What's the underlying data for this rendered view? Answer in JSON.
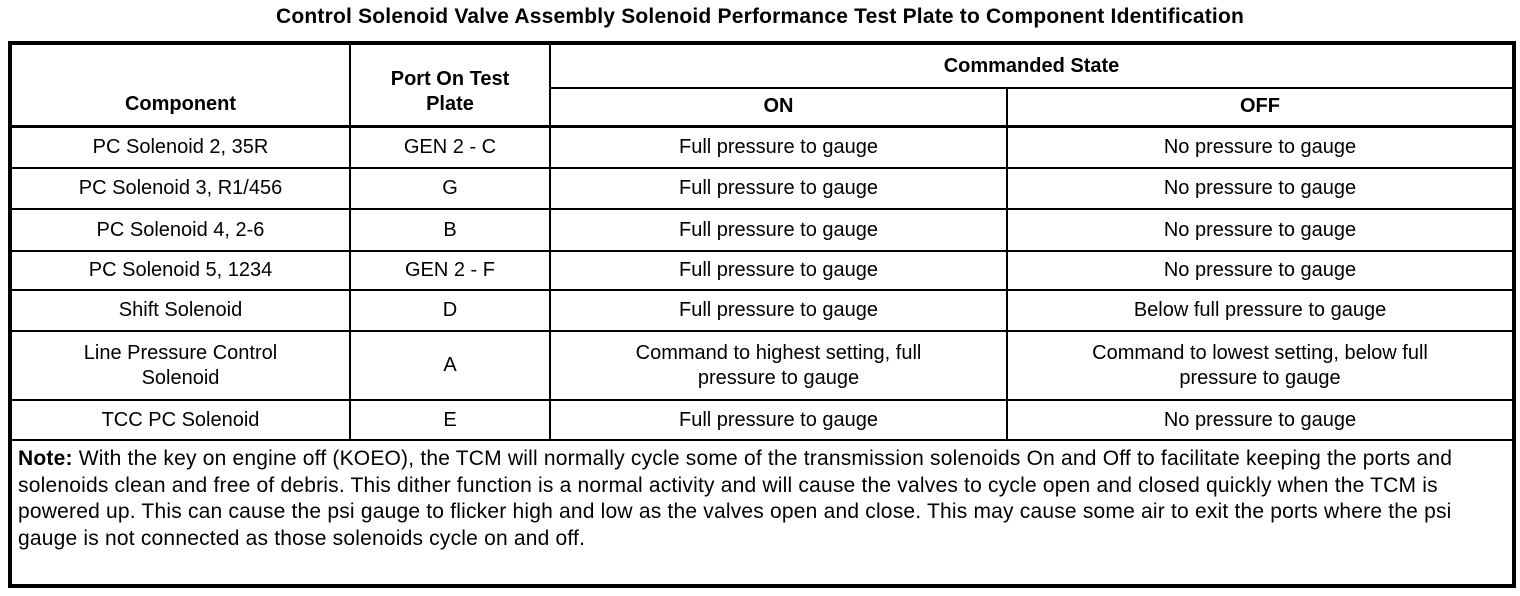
{
  "title": "Control Solenoid Valve Assembly Solenoid Performance Test Plate to Component Identification",
  "table": {
    "headers": {
      "component": "Component",
      "port": "Port On Test Plate",
      "commanded_state": "Commanded State",
      "on": "ON",
      "off": "OFF"
    },
    "rows": [
      {
        "component": "PC Solenoid 2, 35R",
        "port": "GEN 2 - C",
        "on": "Full pressure to gauge",
        "off": "No pressure to gauge"
      },
      {
        "component": "PC Solenoid 3, R1/456",
        "port": "G",
        "on": "Full pressure to gauge",
        "off": "No pressure to gauge"
      },
      {
        "component": "PC Solenoid 4, 2-6",
        "port": "B",
        "on": "Full pressure to gauge",
        "off": "No pressure to gauge"
      },
      {
        "component": "PC Solenoid 5, 1234",
        "port": "GEN 2 - F",
        "on": "Full pressure to gauge",
        "off": "No pressure to gauge"
      },
      {
        "component": "Shift Solenoid",
        "port": "D",
        "on": "Full pressure to gauge",
        "off": "Below full pressure to gauge"
      },
      {
        "component": "Line Pressure Control Solenoid",
        "port": "A",
        "on": "Command to highest setting, full pressure to gauge",
        "off": "Command to lowest setting, below full pressure to gauge"
      },
      {
        "component": "TCC PC Solenoid",
        "port": "E",
        "on": "Full pressure to gauge",
        "off": "No pressure to gauge"
      }
    ],
    "note": {
      "label": "Note:",
      "text": "With the key on engine off (KOEO), the TCM will normally cycle some of the transmission solenoids On and Off to facilitate keeping the ports and solenoids clean and free of debris. This dither function is a normal activity and will cause the valves to cycle open and closed quickly when the TCM is powered up. This can cause the psi gauge to flicker high and low as the valves open and close. This may cause some air to exit the ports where the psi gauge is not connected as those solenoids cycle on and off."
    }
  },
  "colors": {
    "text": "#000000",
    "border": "#000000",
    "background": "#ffffff"
  }
}
